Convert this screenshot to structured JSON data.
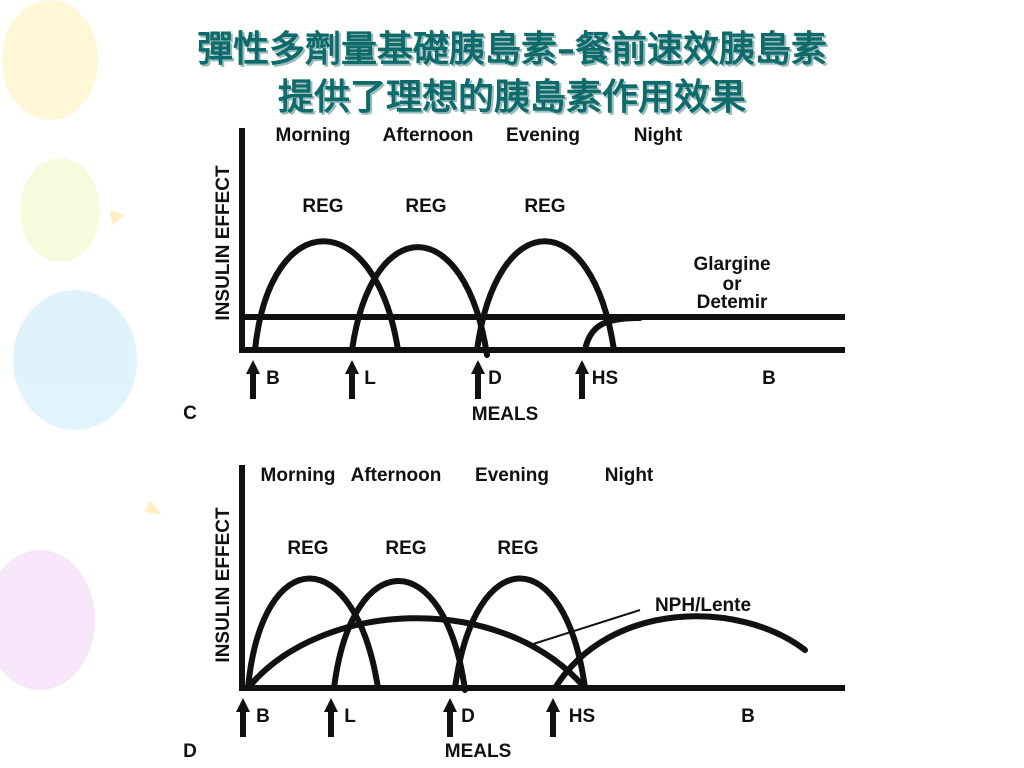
{
  "title": [
    "彈性多劑量基礎胰島素–餐前速效胰島素",
    "提供了理想的胰島素作用效果"
  ],
  "panels": [
    {
      "label": "C",
      "y_axis": "INSULIN EFFECT",
      "periods": [
        "Morning",
        "Afternoon",
        "Evening",
        "Night"
      ],
      "curves": [
        "REG",
        "REG",
        "REG"
      ],
      "basal": [
        "Glargine",
        "or",
        "Detemir"
      ],
      "meals": [
        "B",
        "L",
        "D",
        "HS",
        "B"
      ],
      "x_axis": "MEALS"
    },
    {
      "label": "D",
      "y_axis": "INSULIN EFFECT",
      "periods": [
        "Morning",
        "Afternoon",
        "Evening",
        "Night"
      ],
      "curves": [
        "REG",
        "REG",
        "REG"
      ],
      "basal": [
        "NPH/Lente"
      ],
      "meals": [
        "B",
        "L",
        "D",
        "HS",
        "B"
      ],
      "x_axis": "MEALS"
    }
  ]
}
